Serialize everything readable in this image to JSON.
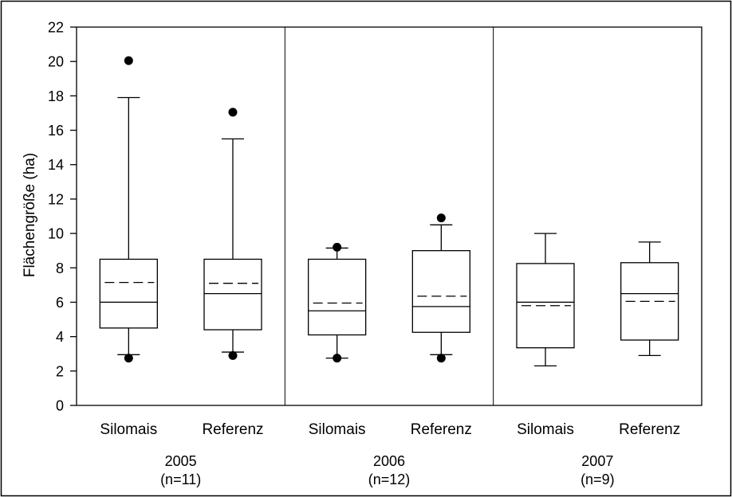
{
  "chart_data": {
    "type": "box",
    "ylabel": "Flächengröße (ha)",
    "ylim": [
      0,
      22
    ],
    "yticks": [
      0,
      2,
      4,
      6,
      8,
      10,
      12,
      14,
      16,
      18,
      20,
      22
    ],
    "groups": [
      {
        "label": "2005",
        "n_label": "(n=11)",
        "boxes": [
          {
            "label": "Silomais",
            "whisker_low": 2.95,
            "q1": 4.5,
            "median": 6.0,
            "mean": 7.15,
            "q3": 8.5,
            "whisker_high": 17.9,
            "outliers": [
              2.75,
              20.05
            ]
          },
          {
            "label": "Referenz",
            "whisker_low": 3.1,
            "q1": 4.4,
            "median": 6.5,
            "mean": 7.1,
            "q3": 8.5,
            "whisker_high": 15.5,
            "outliers": [
              2.9,
              17.05
            ]
          }
        ]
      },
      {
        "label": "2006",
        "n_label": "(n=12)",
        "boxes": [
          {
            "label": "Silomais",
            "whisker_low": 2.75,
            "q1": 4.1,
            "median": 5.5,
            "mean": 5.95,
            "q3": 8.5,
            "whisker_high": 9.15,
            "outliers": [
              2.75,
              9.2
            ]
          },
          {
            "label": "Referenz",
            "whisker_low": 2.95,
            "q1": 4.25,
            "median": 5.75,
            "mean": 6.35,
            "q3": 9.0,
            "whisker_high": 10.5,
            "outliers": [
              2.75,
              10.9
            ]
          }
        ]
      },
      {
        "label": "2007",
        "n_label": "(n=9)",
        "boxes": [
          {
            "label": "Silomais",
            "whisker_low": 2.3,
            "q1": 3.35,
            "median": 6.0,
            "mean": 5.8,
            "q3": 8.25,
            "whisker_high": 10.0,
            "outliers": []
          },
          {
            "label": "Referenz",
            "whisker_low": 2.9,
            "q1": 3.8,
            "median": 6.5,
            "mean": 6.05,
            "q3": 8.3,
            "whisker_high": 9.5,
            "outliers": []
          }
        ]
      }
    ]
  }
}
